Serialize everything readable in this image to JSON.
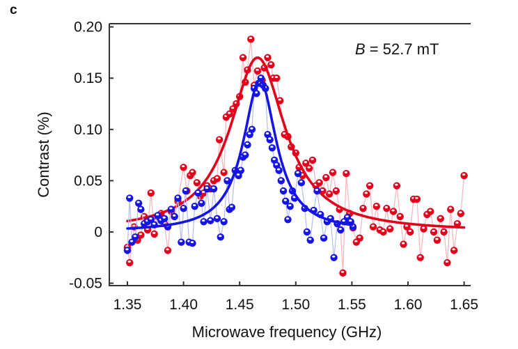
{
  "chart_data": {
    "type": "scatter",
    "panel_label": "c",
    "annotation": {
      "var": "B",
      "rest": " = 52.7 mT"
    },
    "xlabel": "Microwave frequency (GHz)",
    "ylabel": "Contrast (%)",
    "xlim": [
      1.35,
      1.65
    ],
    "ylim": [
      -0.05,
      0.2
    ],
    "xticks": [
      "1.35",
      "1.40",
      "1.45",
      "1.50",
      "1.55",
      "1.60",
      "1.65"
    ],
    "yticks": [
      "-0.05",
      "0",
      "0.05",
      "0.10",
      "0.15",
      "0.20"
    ],
    "grid": false,
    "colors": {
      "red": "#e2001a",
      "blue": "#1414e6",
      "red_light": "#f6b9c1",
      "blue_light": "#b9bff6"
    },
    "series": [
      {
        "name": "red",
        "color_key": "red",
        "fit": {
          "model": "lorentzian",
          "center": 1.466,
          "amplitude": 0.17,
          "hwhm": 0.03,
          "offset": 0.0,
          "range": [
            1.35,
            1.65
          ]
        },
        "points": [
          [
            1.35,
            -0.015
          ],
          [
            1.352,
            -0.03
          ],
          [
            1.356,
            0.005
          ],
          [
            1.359,
            -0.008
          ],
          [
            1.362,
            -0.003
          ],
          [
            1.365,
            0.015
          ],
          [
            1.368,
            0.002
          ],
          [
            1.371,
            0.038
          ],
          [
            1.374,
            -0.002
          ],
          [
            1.377,
            0.015
          ],
          [
            1.38,
            0.018
          ],
          [
            1.383,
            0.008
          ],
          [
            1.386,
            -0.018
          ],
          [
            1.389,
            0.02
          ],
          [
            1.392,
            0.015
          ],
          [
            1.395,
            0.03
          ],
          [
            1.4,
            0.063
          ],
          [
            1.403,
            0.04
          ],
          [
            1.406,
            0.055
          ],
          [
            1.408,
            0.058
          ],
          [
            1.412,
            0.048
          ],
          [
            1.415,
            0.035
          ],
          [
            1.418,
            0.038
          ],
          [
            1.421,
            0.045
          ],
          [
            1.424,
            0.042
          ],
          [
            1.427,
            0.05
          ],
          [
            1.43,
            0.052
          ],
          [
            1.432,
            0.09
          ],
          [
            1.436,
            0.058
          ],
          [
            1.438,
            0.112
          ],
          [
            1.441,
            0.115
          ],
          [
            1.444,
            0.12
          ],
          [
            1.447,
            0.125
          ],
          [
            1.45,
            0.132
          ],
          [
            1.453,
            0.17
          ],
          [
            1.455,
            0.146
          ],
          [
            1.457,
            0.158
          ],
          [
            1.46,
            0.188
          ],
          [
            1.463,
            0.143
          ],
          [
            1.466,
            0.157
          ],
          [
            1.47,
            0.148
          ],
          [
            1.472,
            0.16
          ],
          [
            1.475,
            0.17
          ],
          [
            1.478,
            0.163
          ],
          [
            1.48,
            0.15
          ],
          [
            1.483,
            0.15
          ],
          [
            1.486,
            0.128
          ],
          [
            1.49,
            0.095
          ],
          [
            1.493,
            0.093
          ],
          [
            1.496,
            0.083
          ],
          [
            1.5,
            0.077
          ],
          [
            1.503,
            0.063
          ],
          [
            1.506,
            0.055
          ],
          [
            1.509,
            0.067
          ],
          [
            1.512,
            0.062
          ],
          [
            1.515,
            0.07
          ],
          [
            1.518,
            0.045
          ],
          [
            1.521,
            0.048
          ],
          [
            1.524,
            0.04
          ],
          [
            1.527,
            0.053
          ],
          [
            1.53,
            0.037
          ],
          [
            1.533,
            0.058
          ],
          [
            1.536,
            0.04
          ],
          [
            1.539,
            0.022
          ],
          [
            1.542,
            -0.04
          ],
          [
            1.545,
            0.057
          ],
          [
            1.548,
            0.018
          ],
          [
            1.551,
            0.004
          ],
          [
            1.554,
            -0.01
          ],
          [
            1.557,
            -0.006
          ],
          [
            1.56,
            0.023
          ],
          [
            1.563,
            0.037
          ],
          [
            1.566,
            0.045
          ],
          [
            1.569,
            0.005
          ],
          [
            1.572,
            0.025
          ],
          [
            1.575,
            0.002
          ],
          [
            1.578,
            0.0
          ],
          [
            1.581,
            0.023
          ],
          [
            1.584,
            0.003
          ],
          [
            1.587,
            0.02
          ],
          [
            1.59,
            0.045
          ],
          [
            1.593,
            0.015
          ],
          [
            1.596,
            -0.012
          ],
          [
            1.599,
            0.005
          ],
          [
            1.602,
            0.0
          ],
          [
            1.605,
            0.032
          ],
          [
            1.608,
            0.032
          ],
          [
            1.611,
            -0.025
          ],
          [
            1.614,
            0.003
          ],
          [
            1.617,
            0.017
          ],
          [
            1.62,
            0.02
          ],
          [
            1.623,
            0.0
          ],
          [
            1.626,
            -0.008
          ],
          [
            1.629,
            0.013
          ],
          [
            1.632,
            0.0
          ],
          [
            1.635,
            -0.03
          ],
          [
            1.638,
            0.022
          ],
          [
            1.641,
            -0.018
          ],
          [
            1.644,
            0.008
          ],
          [
            1.647,
            0.018
          ],
          [
            1.65,
            0.055
          ]
        ]
      },
      {
        "name": "blue",
        "color_key": "blue",
        "fit": {
          "model": "lorentzian",
          "center": 1.468,
          "amplitude": 0.148,
          "hwhm": 0.018,
          "offset": 0.0,
          "range": [
            1.35,
            1.55
          ]
        },
        "points": [
          [
            1.35,
            -0.018
          ],
          [
            1.352,
            0.033
          ],
          [
            1.354,
            -0.01
          ],
          [
            1.357,
            -0.005
          ],
          [
            1.36,
            0.028
          ],
          [
            1.362,
            0.022
          ],
          [
            1.365,
            0.008
          ],
          [
            1.368,
            0.01
          ],
          [
            1.371,
            0.012
          ],
          [
            1.374,
            0.007
          ],
          [
            1.377,
            0.016
          ],
          [
            1.38,
            0.011
          ],
          [
            1.383,
            0.013
          ],
          [
            1.386,
            0.005
          ],
          [
            1.389,
            0.022
          ],
          [
            1.392,
            0.015
          ],
          [
            1.395,
            0.033
          ],
          [
            1.398,
            -0.01
          ],
          [
            1.4,
            0.023
          ],
          [
            1.402,
            0.04
          ],
          [
            1.405,
            -0.01
          ],
          [
            1.408,
            -0.011
          ],
          [
            1.41,
            0.025
          ],
          [
            1.413,
            0.038
          ],
          [
            1.416,
            0.028
          ],
          [
            1.418,
            0.01
          ],
          [
            1.421,
            0.042
          ],
          [
            1.424,
            0.011
          ],
          [
            1.427,
            0.042
          ],
          [
            1.43,
            0.013
          ],
          [
            1.433,
            -0.005
          ],
          [
            1.436,
            0.01
          ],
          [
            1.439,
            0.05
          ],
          [
            1.441,
            0.022
          ],
          [
            1.443,
            0.024
          ],
          [
            1.446,
            0.06
          ],
          [
            1.449,
            0.055
          ],
          [
            1.451,
            0.06
          ],
          [
            1.453,
            0.073
          ],
          [
            1.455,
            0.075
          ],
          [
            1.457,
            0.085
          ],
          [
            1.459,
            0.095
          ],
          [
            1.461,
            0.1
          ],
          [
            1.463,
            0.14
          ],
          [
            1.465,
            0.135
          ],
          [
            1.467,
            0.145
          ],
          [
            1.469,
            0.15
          ],
          [
            1.471,
            0.143
          ],
          [
            1.473,
            0.14
          ],
          [
            1.475,
            0.095
          ],
          [
            1.477,
            0.09
          ],
          [
            1.479,
            0.082
          ],
          [
            1.481,
            0.07
          ],
          [
            1.483,
            0.065
          ],
          [
            1.485,
            0.06
          ],
          [
            1.487,
            0.05
          ],
          [
            1.489,
            0.04
          ],
          [
            1.491,
            0.03
          ],
          [
            1.493,
            0.012
          ],
          [
            1.495,
            0.025
          ],
          [
            1.497,
            0.04
          ],
          [
            1.499,
            0.033
          ],
          [
            1.502,
            0.057
          ],
          [
            1.505,
            0.048
          ],
          [
            1.508,
            0.023
          ],
          [
            1.51,
            0.0
          ],
          [
            1.513,
            -0.008
          ],
          [
            1.516,
            0.021
          ],
          [
            1.519,
            0.04
          ],
          [
            1.522,
            0.017
          ],
          [
            1.525,
            -0.006
          ],
          [
            1.528,
            0.01
          ],
          [
            1.531,
            0.013
          ],
          [
            1.534,
            -0.025
          ],
          [
            1.537,
            0.008
          ],
          [
            1.54,
            0.002
          ],
          [
            1.543,
            0.01
          ],
          [
            1.546,
            0.014
          ],
          [
            1.549,
            0.01
          ],
          [
            1.551,
            0.005
          ]
        ]
      }
    ]
  }
}
